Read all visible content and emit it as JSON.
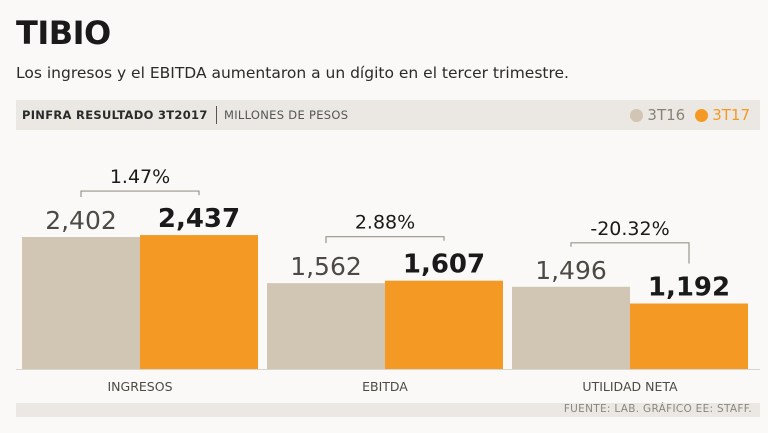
{
  "title": "TIBIO",
  "subtitle": "Los ingresos y el EBITDA aumentaron a un dígito en el tercer trimestre.",
  "header": {
    "series_label": "PINFRA RESULTADO 3T2017",
    "units": "MILLONES DE PESOS"
  },
  "colors": {
    "3T16": "#d1c5b4",
    "3T17": "#f49a24",
    "background": "#faf9f7",
    "band": "#ebe8e3"
  },
  "source": "FUENTE: LAB. GRÁFICO EE: STAFF.",
  "chart_data": {
    "type": "bar",
    "categories": [
      "INGRESOS",
      "EBITDA",
      "UTILIDAD NETA"
    ],
    "series": [
      {
        "name": "3T16",
        "values": [
          2402,
          1562,
          1496
        ],
        "labels": [
          "2,402",
          "1,562",
          "1,496"
        ]
      },
      {
        "name": "3T17",
        "values": [
          2437,
          1607,
          1192
        ],
        "labels": [
          "2,437",
          "1,607",
          "1,192"
        ]
      }
    ],
    "changes": [
      "1.47%",
      "2.88%",
      "-20.32%"
    ],
    "legend_position": "top-right",
    "grid": false
  }
}
